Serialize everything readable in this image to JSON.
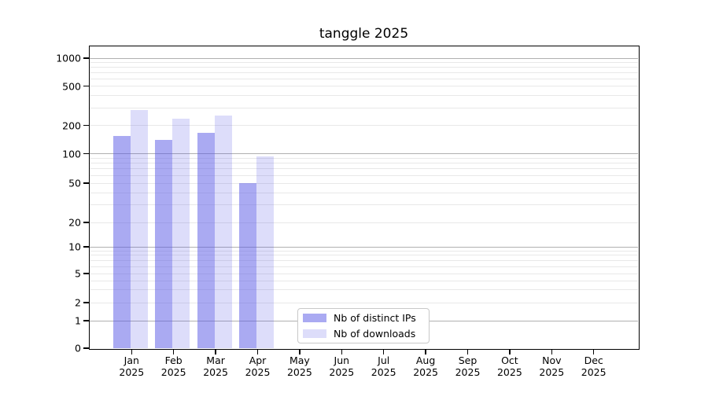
{
  "chart_data": {
    "type": "bar",
    "title": "tanggle 2025",
    "categories": [
      "Jan",
      "Feb",
      "Mar",
      "Apr",
      "May",
      "Jun",
      "Jul",
      "Aug",
      "Sep",
      "Oct",
      "Nov",
      "Dec"
    ],
    "year": "2025",
    "series": [
      {
        "name": "Nb of distinct IPs",
        "color": "#5555e6",
        "alpha": 0.5,
        "values": [
          155,
          140,
          165,
          50,
          0,
          0,
          0,
          0,
          0,
          0,
          0,
          0
        ]
      },
      {
        "name": "Nb of downloads",
        "color": "#5555e6",
        "alpha": 0.2,
        "values": [
          285,
          235,
          250,
          93,
          0,
          0,
          0,
          0,
          0,
          0,
          0,
          0
        ]
      }
    ],
    "yscale": "symlog",
    "ylim": [
      0,
      1000
    ],
    "ytick_labels": [
      0,
      1,
      2,
      5,
      10,
      20,
      50,
      100,
      200,
      500,
      1000
    ],
    "grid": true,
    "legend_position": "lower-center-inside"
  },
  "colors": {
    "background": "#ffffff",
    "axis": "#000000",
    "major_grid": "#b0b0b0",
    "minor_grid": "#e8e8e8",
    "text": "#000000"
  }
}
